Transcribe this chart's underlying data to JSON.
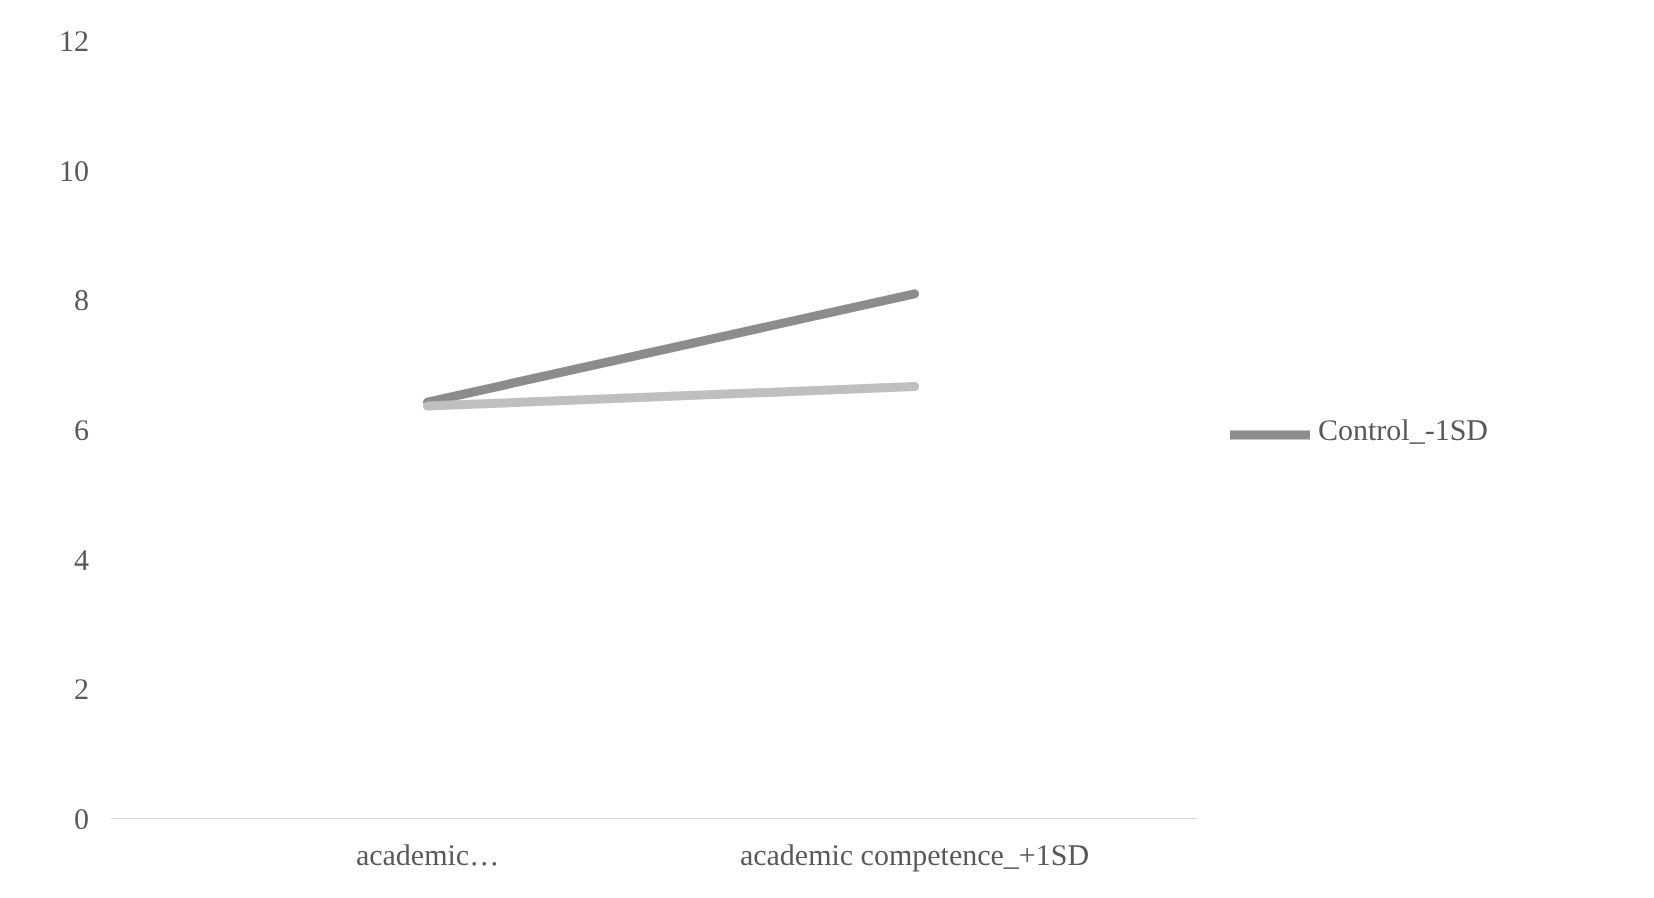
{
  "chart_data": {
    "type": "line",
    "categories": [
      "academic…",
      "academic competence_+1SD"
    ],
    "series": [
      {
        "name": "Control_-1SD",
        "color": "#8c8c8c",
        "values": [
          6.43,
          8.1
        ]
      },
      {
        "color": "#bfbfbf",
        "values": [
          6.37,
          6.67
        ]
      }
    ],
    "ylim": [
      0,
      12
    ],
    "yticks": [
      0,
      2,
      4,
      6,
      8,
      10,
      12
    ],
    "grid": false,
    "legend": "right",
    "marker": "none",
    "line_style": "solid"
  }
}
